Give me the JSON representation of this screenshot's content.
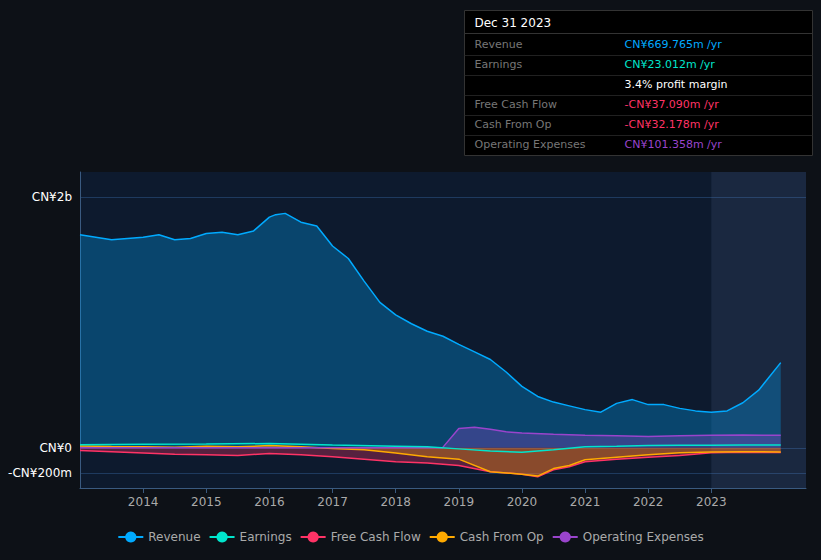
{
  "chart_data": {
    "type": "line",
    "xlim": [
      2013.0,
      2024.5
    ],
    "xticks": [
      2014,
      2015,
      2016,
      2017,
      2018,
      2019,
      2020,
      2021,
      2022,
      2023
    ],
    "ylim": [
      -320,
      2200
    ],
    "yticks": [
      {
        "value": -200,
        "label": "-CN¥200m"
      },
      {
        "value": 0,
        "label": "CN¥0"
      },
      {
        "value": 2000,
        "label": "CN¥2b"
      }
    ],
    "grid": true,
    "legend": "bottom",
    "highlight_x": [
      2023.0,
      2024.5
    ],
    "series": [
      {
        "name": "Revenue",
        "type": "area",
        "color": "#00aaff",
        "x": [
          2013.0,
          2013.25,
          2013.5,
          2013.75,
          2014.0,
          2014.25,
          2014.5,
          2014.75,
          2015.0,
          2015.25,
          2015.5,
          2015.75,
          2016.0,
          2016.1,
          2016.25,
          2016.5,
          2016.75,
          2017.0,
          2017.25,
          2017.5,
          2017.75,
          2018.0,
          2018.25,
          2018.5,
          2018.75,
          2019.0,
          2019.25,
          2019.5,
          2019.75,
          2020.0,
          2020.25,
          2020.5,
          2020.75,
          2021.0,
          2021.25,
          2021.5,
          2021.75,
          2022.0,
          2022.25,
          2022.5,
          2022.75,
          2023.0,
          2023.25,
          2023.5,
          2023.75,
          2024.1
        ],
        "values": [
          1700,
          1680,
          1660,
          1670,
          1680,
          1700,
          1660,
          1670,
          1710,
          1720,
          1700,
          1730,
          1840,
          1860,
          1870,
          1800,
          1770,
          1610,
          1510,
          1330,
          1160,
          1060,
          990,
          930,
          890,
          825,
          765,
          705,
          605,
          490,
          410,
          365,
          335,
          305,
          285,
          355,
          385,
          345,
          345,
          315,
          295,
          285,
          295,
          360,
          460,
          680
        ]
      },
      {
        "name": "Earnings",
        "type": "line",
        "color": "#00e5cc",
        "x": [
          2013.0,
          2014.0,
          2015.0,
          2016.0,
          2017.0,
          2018.0,
          2018.5,
          2019.0,
          2019.5,
          2020.0,
          2020.5,
          2021.0,
          2021.5,
          2022.0,
          2022.5,
          2023.0,
          2023.5,
          2024.1
        ],
        "values": [
          25,
          28,
          30,
          35,
          22,
          12,
          8,
          -8,
          -25,
          -35,
          -15,
          8,
          12,
          18,
          20,
          20,
          22,
          23
        ]
      },
      {
        "name": "Free Cash Flow",
        "type": "area",
        "color": "#ff3366",
        "x": [
          2013.0,
          2013.5,
          2014.0,
          2014.5,
          2015.0,
          2015.5,
          2016.0,
          2016.5,
          2017.0,
          2017.5,
          2018.0,
          2018.5,
          2019.0,
          2019.5,
          2020.0,
          2020.25,
          2020.5,
          2020.75,
          2021.0,
          2021.5,
          2022.0,
          2022.5,
          2023.0,
          2023.5,
          2024.1
        ],
        "values": [
          -20,
          -30,
          -40,
          -50,
          -55,
          -60,
          -45,
          -55,
          -70,
          -90,
          -110,
          -120,
          -140,
          -190,
          -210,
          -230,
          -175,
          -150,
          -110,
          -90,
          -75,
          -60,
          -38,
          -35,
          -37
        ]
      },
      {
        "name": "Cash From Op",
        "type": "area",
        "color": "#ffaa00",
        "x": [
          2013.0,
          2013.5,
          2014.0,
          2014.5,
          2015.0,
          2015.5,
          2016.0,
          2016.5,
          2017.0,
          2017.5,
          2018.0,
          2018.5,
          2019.0,
          2019.5,
          2020.0,
          2020.25,
          2020.5,
          2020.75,
          2021.0,
          2021.5,
          2022.0,
          2022.5,
          2023.0,
          2023.5,
          2024.1
        ],
        "values": [
          15,
          10,
          8,
          5,
          12,
          8,
          18,
          8,
          -5,
          -15,
          -40,
          -70,
          -90,
          -190,
          -210,
          -225,
          -165,
          -140,
          -95,
          -75,
          -55,
          -38,
          -32,
          -30,
          -32
        ]
      },
      {
        "name": "Operating Expenses",
        "type": "area",
        "color": "#9944cc",
        "x": [
          2013.0,
          2018.74,
          2018.75,
          2019.0,
          2019.25,
          2019.5,
          2019.75,
          2020.0,
          2020.5,
          2021.0,
          2021.5,
          2022.0,
          2022.5,
          2023.0,
          2023.5,
          2024.1
        ],
        "values": [
          0,
          0,
          2,
          155,
          165,
          148,
          128,
          118,
          108,
          100,
          96,
          90,
          96,
          100,
          102,
          101
        ]
      }
    ],
    "info_box": {
      "title": "Dec 31 2023",
      "rows": [
        {
          "label": "Revenue",
          "value": "CN¥669.765m /yr",
          "color": "#00aaff"
        },
        {
          "label": "Earnings",
          "value": "CN¥23.012m /yr",
          "color": "#00e5cc"
        },
        {
          "value": "3.4% profit margin",
          "color": "#ffffff"
        },
        {
          "label": "Free Cash Flow",
          "value": "-CN¥37.090m /yr",
          "color": "#ff3366"
        },
        {
          "label": "Cash From Op",
          "value": "-CN¥32.178m /yr",
          "color": "#ff3366"
        },
        {
          "label": "Operating Expenses",
          "value": "CN¥101.358m /yr",
          "color": "#9944cc"
        }
      ]
    }
  }
}
